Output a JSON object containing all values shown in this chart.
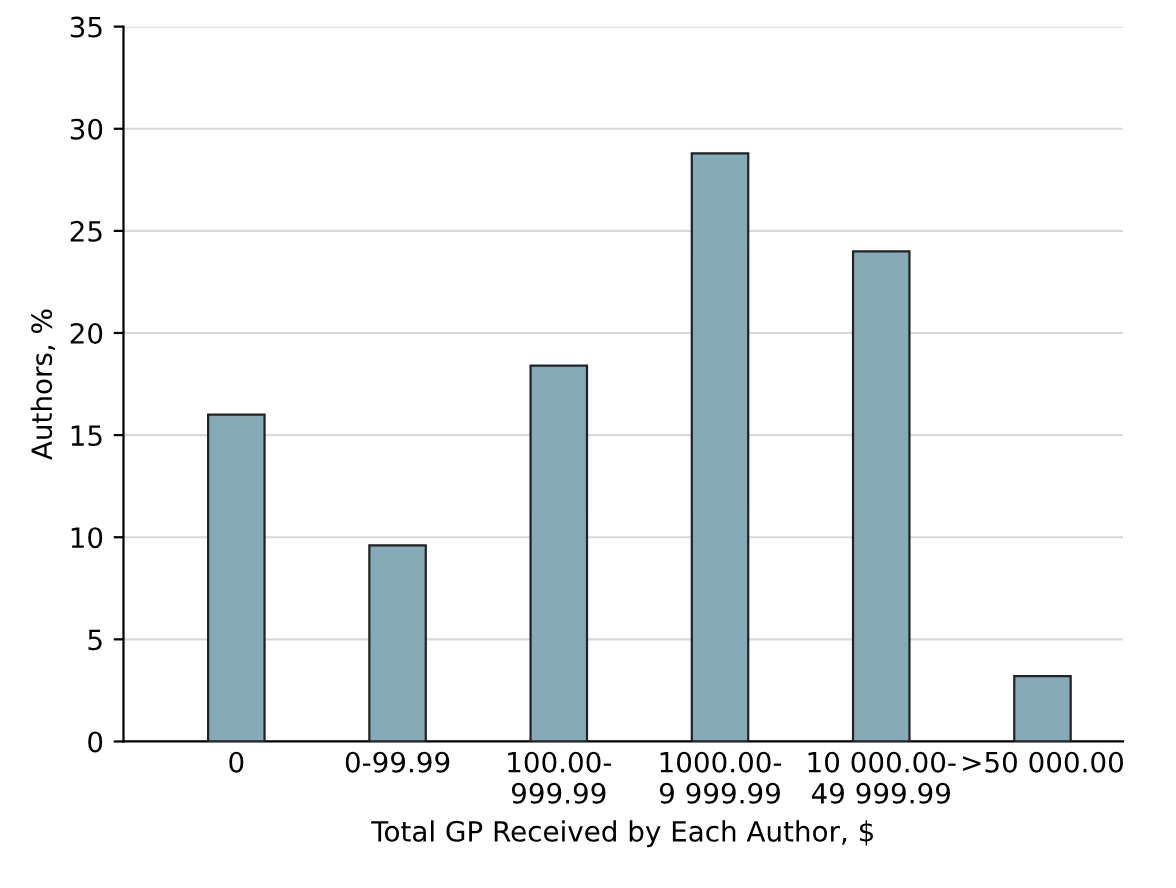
{
  "chart_data": {
    "type": "bar",
    "xlabel": "Total GP Received by Each Author, $",
    "ylabel": "Authors, %",
    "categories": [
      "0",
      "0-99.99",
      "100.00-\n999.99",
      "1000.00-\n9 999.99",
      "10 000.00-\n49 999.99",
      ">50 000.00"
    ],
    "values": [
      16.0,
      9.6,
      18.4,
      28.8,
      24.0,
      3.2
    ],
    "color": "#84a9b7",
    "ylim": [
      0,
      35
    ],
    "yticks": [
      0,
      5,
      10,
      15,
      20,
      25,
      30,
      35
    ],
    "grid": "y"
  }
}
